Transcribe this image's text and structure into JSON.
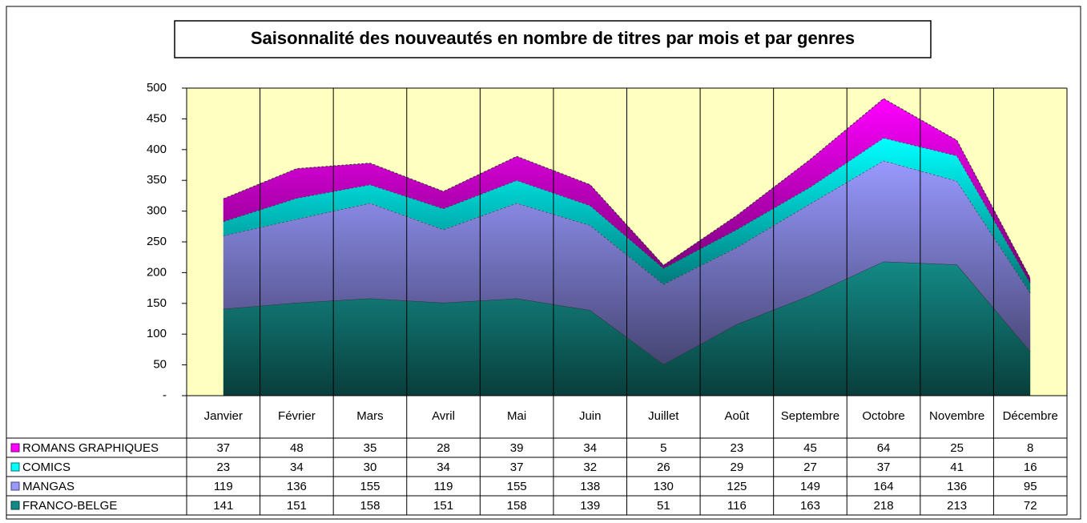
{
  "chart_data": {
    "type": "stacked_area",
    "title": "Saisonnalité des nouveautés en nombre de titres par mois et par genres",
    "categories": [
      "Janvier",
      "Février",
      "Mars",
      "Avril",
      "Mai",
      "Juin",
      "Juillet",
      "Août",
      "Septembre",
      "Octobre",
      "Novembre",
      "Décembre"
    ],
    "series": [
      {
        "name": "ROMANS GRAPHIQUES",
        "color": "#ff00ff",
        "values": [
          37,
          48,
          35,
          28,
          39,
          34,
          5,
          23,
          45,
          64,
          25,
          8
        ]
      },
      {
        "name": "COMICS",
        "color": "#00ffff",
        "values": [
          23,
          34,
          30,
          34,
          37,
          32,
          26,
          29,
          27,
          37,
          41,
          16
        ]
      },
      {
        "name": "MANGAS",
        "color": "#9999ff",
        "values": [
          119,
          136,
          155,
          119,
          155,
          138,
          130,
          125,
          149,
          164,
          136,
          95
        ]
      },
      {
        "name": "FRANCO-BELGE",
        "color": "#138a86",
        "values": [
          141,
          151,
          158,
          151,
          158,
          139,
          51,
          116,
          163,
          218,
          213,
          72
        ]
      }
    ],
    "ylim": [
      0,
      500
    ],
    "yticks": [
      {
        "value": 0,
        "label": "-"
      },
      50,
      100,
      150,
      200,
      250,
      300,
      350,
      400,
      450,
      500
    ],
    "plot_background": "#ffffc0"
  }
}
